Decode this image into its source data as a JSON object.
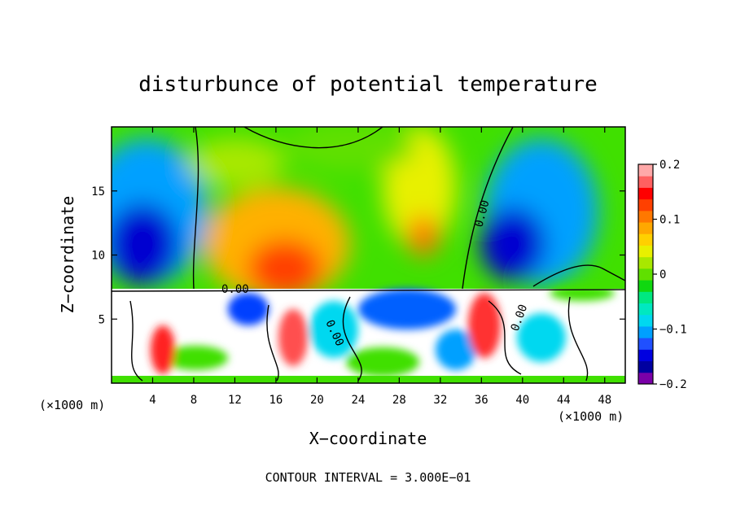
{
  "chart_data": {
    "type": "heatmap",
    "title": "disturbunce of potential temperature",
    "xlabel": "X−coordinate",
    "ylabel": "Z−coordinate",
    "x_unit_left": "(×1000 m)",
    "x_unit_right": "(×1000 m)",
    "xlim": [
      0,
      50
    ],
    "ylim": [
      0,
      20
    ],
    "x_ticks": [
      "4",
      "8",
      "12",
      "16",
      "20",
      "24",
      "28",
      "32",
      "36",
      "40",
      "44",
      "48"
    ],
    "x_tick_values": [
      4,
      8,
      12,
      16,
      20,
      24,
      28,
      32,
      36,
      40,
      44,
      48
    ],
    "y_ticks": [
      "5",
      "10",
      "15"
    ],
    "y_tick_values": [
      5,
      10,
      15
    ],
    "colorbar": {
      "min": -0.2,
      "max": 0.2,
      "ticks": [
        "0.2",
        "0.1",
        "0",
        "−0.1",
        "−0.2"
      ],
      "tick_values": [
        0.2,
        0.1,
        0,
        -0.1,
        -0.2
      ],
      "colors": [
        "#7a00a8",
        "#0000a0",
        "#0000e0",
        "#2050ff",
        "#00a0ff",
        "#00d8f0",
        "#00e8c0",
        "#00e880",
        "#10d810",
        "#60e000",
        "#a8e800",
        "#e8f000",
        "#ffd000",
        "#ffa800",
        "#ff7800",
        "#ff4000",
        "#ff0000",
        "#ff6060",
        "#ffa8a8"
      ]
    },
    "contour_labels": [
      "0.00",
      "0.00",
      "0.00",
      "0.00"
    ],
    "annotation": "CONTOUR INTERVAL = 3.000E−01"
  }
}
